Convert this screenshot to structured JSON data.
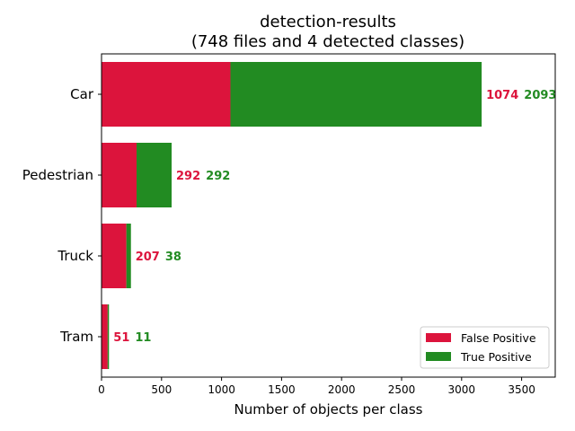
{
  "chart_data": {
    "type": "bar",
    "orientation": "horizontal",
    "stacked": true,
    "title": "detection-results",
    "subtitle": "(748 files and 4 detected classes)",
    "xlabel": "Number of objects per class",
    "ylabel": "",
    "categories": [
      "Car",
      "Pedestrian",
      "Truck",
      "Tram"
    ],
    "series": [
      {
        "name": "False Positive",
        "color": "#dc143c",
        "values": [
          1074,
          292,
          207,
          51
        ]
      },
      {
        "name": "True Positive",
        "color": "#228b22",
        "values": [
          2093,
          292,
          38,
          11
        ]
      }
    ],
    "xlim": [
      0,
      3780
    ],
    "xticks": [
      0,
      500,
      1000,
      1500,
      2000,
      2500,
      3000,
      3500
    ],
    "grid": false,
    "legend": "lower-right"
  }
}
